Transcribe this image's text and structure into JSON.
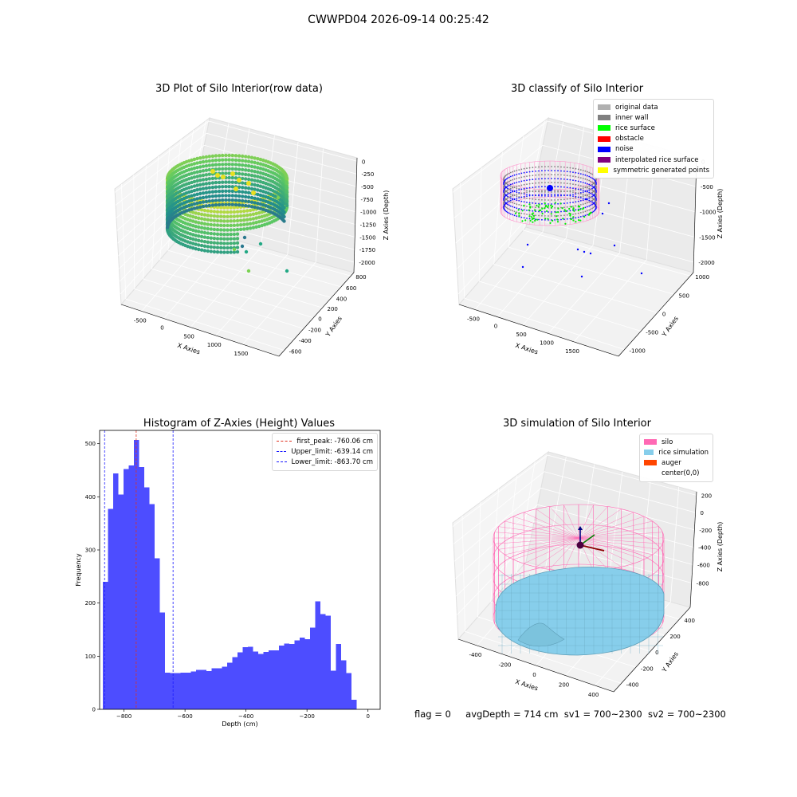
{
  "figure": {
    "title": "CWWPD04 2026-09-14 00:25:42",
    "footer": {
      "flag": "flag = 0",
      "avg_depth": "avgDepth = 714 cm",
      "sv1": "sv1 = 700~2300",
      "sv2": "sv2 = 700~2300"
    }
  },
  "colors": {
    "histogram_bar": "#4d4dff",
    "peak_line": "#e0301e",
    "limit_line": "#1a1aff",
    "silo_wire": "#ff69b4",
    "rice_surface_fill": "#87ceeb"
  },
  "chart_data": [
    {
      "type": "scatter3d",
      "title": "3D Plot of Silo Interior(row data)",
      "xlabel": "X Axies",
      "ylabel": "Y Axies",
      "zlabel": "Z Axies (Depth)",
      "x_ticks": [
        "-500",
        "0",
        "500",
        "1000",
        "1500"
      ],
      "y_ticks": [
        "-600",
        "-400",
        "-200",
        "0",
        "200",
        "400",
        "600",
        "800"
      ],
      "z_ticks": [
        "0",
        "-250",
        "-500",
        "-750",
        "-1000",
        "-1250",
        "-1500",
        "-1750",
        "-2000"
      ],
      "colormap": "viridis"
    },
    {
      "type": "scatter3d",
      "title": "3D classify of Silo Interior",
      "xlabel": "X Axies",
      "ylabel": "Y Axies",
      "zlabel": "Z Axies (Depth)",
      "x_ticks": [
        "-500",
        "0",
        "500",
        "1000",
        "1500"
      ],
      "y_ticks": [
        "-1000",
        "-500",
        "0",
        "500",
        "1000"
      ],
      "z_ticks": [
        "0",
        "-500",
        "-1000",
        "-1500",
        "-2000"
      ],
      "legend": [
        {
          "label": "original data",
          "color": "#b0b0b0"
        },
        {
          "label": "inner wall",
          "color": "#808080"
        },
        {
          "label": "rice surface",
          "color": "#00ff00"
        },
        {
          "label": "obstacle",
          "color": "#ff0000"
        },
        {
          "label": "noise",
          "color": "#0000ff"
        },
        {
          "label": "interpolated rice surface",
          "color": "#800080"
        },
        {
          "label": "symmetric generated points",
          "color": "#ffff00"
        }
      ]
    },
    {
      "type": "bar",
      "title": "Histogram of Z-Axies (Height) Values",
      "xlabel": "Depth (cm)",
      "ylabel": "Frequency",
      "xlim": [
        -880,
        40
      ],
      "ylim": [
        0,
        525
      ],
      "x_ticks": [
        -800,
        -600,
        -400,
        -200,
        0
      ],
      "y_ticks": [
        0,
        100,
        200,
        300,
        400,
        500
      ],
      "bin_start": -870,
      "bin_width": 17.0,
      "values": [
        240,
        377,
        444,
        404,
        452,
        459,
        507,
        456,
        418,
        386,
        284,
        182,
        69,
        68,
        68,
        69,
        69,
        71,
        74,
        74,
        72,
        77,
        77,
        80,
        88,
        98,
        107,
        117,
        118,
        109,
        104,
        108,
        111,
        111,
        120,
        124,
        123,
        130,
        135,
        132,
        154,
        203,
        179,
        176,
        73,
        123,
        92,
        68,
        18
      ],
      "reference_lines": [
        {
          "label": "first_peak: -760.06 cm",
          "value": -760.06,
          "color": "#e0301e"
        },
        {
          "label": "Upper_limit: -639.14 cm",
          "value": -639.14,
          "color": "#1a1aff"
        },
        {
          "label": "Lower_limit: -863.70 cm",
          "value": -863.7,
          "color": "#1a1aff"
        }
      ]
    },
    {
      "type": "surface3d",
      "title": "3D simulation of Silo Interior",
      "xlabel": "X Axies",
      "ylabel": "Y Axies",
      "zlabel": "Z Axies (Depth)",
      "x_ticks": [
        "-400",
        "-200",
        "0",
        "200",
        "400"
      ],
      "y_ticks": [
        "-400",
        "-200",
        "0",
        "200",
        "400"
      ],
      "z_ticks": [
        "200",
        "0",
        "-200",
        "-400",
        "-600",
        "-800"
      ],
      "legend": [
        {
          "label": "silo",
          "color": "#ff69b4"
        },
        {
          "label": "rice simulation",
          "color": "#87ceeb"
        },
        {
          "label": "auger",
          "color": "#ff4500"
        },
        {
          "label": "center(0,0)",
          "color": "transparent"
        }
      ]
    }
  ]
}
